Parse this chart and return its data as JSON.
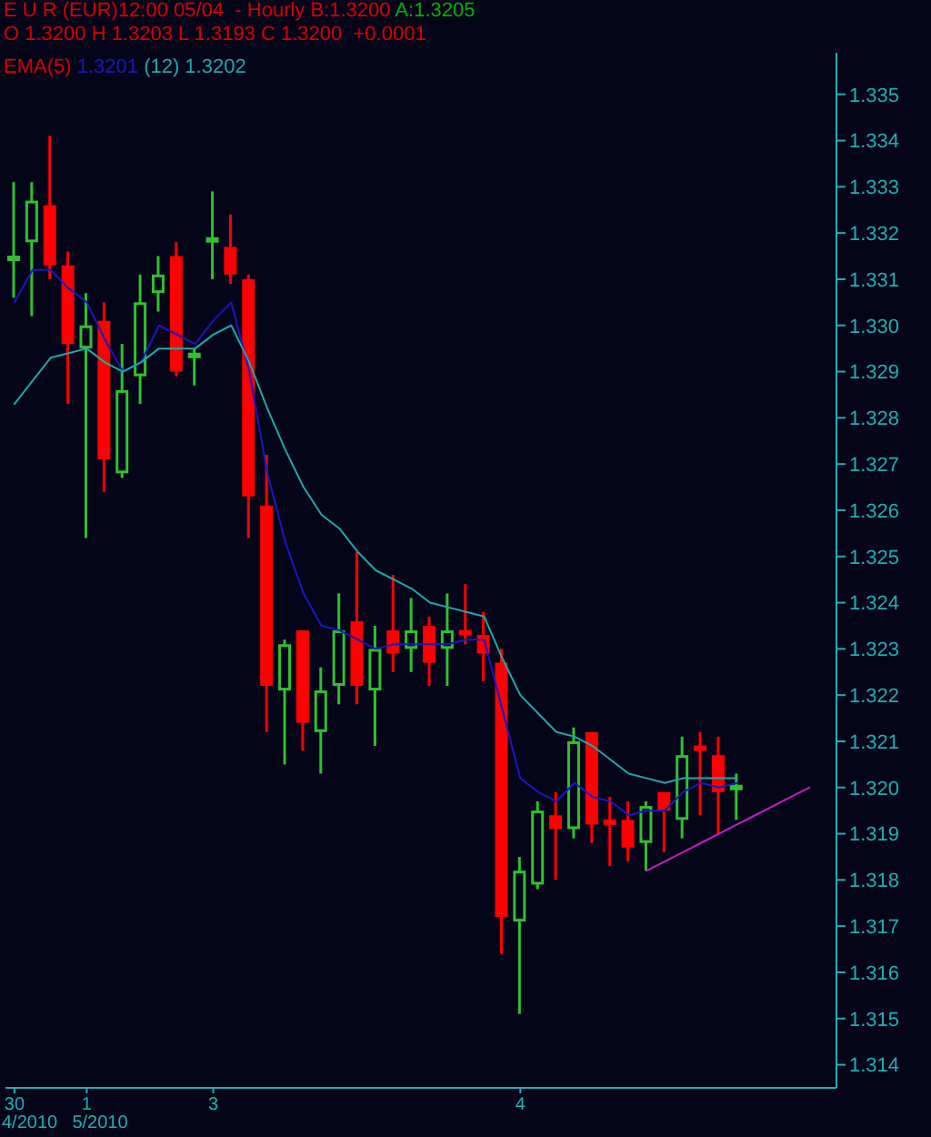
{
  "chart_data": {
    "type": "candlestick",
    "title": "E U R (EUR)12:00 05/04  - Hourly B:1.3200",
    "subtitle": "O 1.3200 H 1.3203 L 1.3193 C 1.3200  +0.0001",
    "annotations": [
      "A:1.3205",
      "4/2010",
      "5/2010"
    ],
    "categories": [
      "30",
      null,
      null,
      null,
      "1",
      null,
      null,
      null,
      null,
      null,
      null,
      "3",
      null,
      null,
      null,
      null,
      null,
      null,
      null,
      null,
      null,
      null,
      null,
      null,
      null,
      null,
      null,
      null,
      "4",
      null,
      null,
      null,
      null,
      null,
      null,
      null,
      null,
      null,
      null,
      null,
      null,
      null,
      null,
      null,
      null,
      null
    ],
    "ohlc": [
      [
        1.3314,
        1.3331,
        1.3306,
        1.3315
      ],
      [
        1.3318,
        1.3331,
        1.3302,
        1.3327
      ],
      [
        1.3326,
        1.3341,
        1.331,
        1.3313
      ],
      [
        1.3313,
        1.3316,
        1.3283,
        1.3296
      ],
      [
        1.3295,
        1.3307,
        1.3254,
        1.33
      ],
      [
        1.3301,
        1.3305,
        1.3264,
        1.3271
      ],
      [
        1.3268,
        1.3296,
        1.3267,
        1.3286
      ],
      [
        1.3289,
        1.3311,
        1.3283,
        1.3305
      ],
      [
        1.3307,
        1.3315,
        1.3303,
        1.3311
      ],
      [
        1.3315,
        1.3318,
        1.3289,
        1.329
      ],
      [
        1.3293,
        1.3295,
        1.3287,
        1.3294
      ],
      [
        1.3318,
        1.3329,
        1.331,
        1.3319
      ],
      [
        1.3317,
        1.3324,
        1.3309,
        1.3311
      ],
      [
        1.331,
        1.3311,
        1.3254,
        1.3263
      ],
      [
        1.3261,
        1.3272,
        1.3212,
        1.3222
      ],
      [
        1.3221,
        1.3232,
        1.3205,
        1.3231
      ],
      [
        1.3234,
        1.3234,
        1.3208,
        1.3214
      ],
      [
        1.3212,
        1.3226,
        1.3203,
        1.3221
      ],
      [
        1.3222,
        1.3242,
        1.3218,
        1.3234
      ],
      [
        1.3236,
        1.3251,
        1.3218,
        1.3222
      ],
      [
        1.3221,
        1.3235,
        1.3209,
        1.323
      ],
      [
        1.3234,
        1.3246,
        1.3225,
        1.3229
      ],
      [
        1.323,
        1.3241,
        1.3225,
        1.3234
      ],
      [
        1.3235,
        1.3237,
        1.3222,
        1.3227
      ],
      [
        1.323,
        1.3242,
        1.3222,
        1.3234
      ],
      [
        1.3234,
        1.3244,
        1.3231,
        1.3233
      ],
      [
        1.3233,
        1.3238,
        1.3223,
        1.3229
      ],
      [
        1.3227,
        1.323,
        1.3164,
        1.3172
      ],
      [
        1.3171,
        1.3185,
        1.3151,
        1.3182
      ],
      [
        1.3179,
        1.3197,
        1.3178,
        1.3195
      ],
      [
        1.3194,
        1.3199,
        1.318,
        1.3191
      ],
      [
        1.3191,
        1.3213,
        1.3189,
        1.321
      ],
      [
        1.3212,
        1.3212,
        1.3188,
        1.3192
      ],
      [
        1.3193,
        1.3198,
        1.3183,
        1.3192
      ],
      [
        1.3193,
        1.3197,
        1.3184,
        1.3187
      ],
      [
        1.3188,
        1.3197,
        1.3182,
        1.3196
      ],
      [
        1.3199,
        1.3199,
        1.3186,
        1.3195
      ],
      [
        1.3193,
        1.3211,
        1.3189,
        1.3207
      ],
      [
        1.3209,
        1.3212,
        1.3194,
        1.3208
      ],
      [
        1.3207,
        1.3211,
        1.319,
        1.3199
      ],
      [
        1.32,
        1.3203,
        1.3193,
        1.32
      ],
      null,
      null,
      null,
      null,
      null
    ],
    "colors": [
      "#30c030",
      "#30c030",
      "#ff0000",
      "#ff0000",
      "#30c030",
      "#ff0000",
      "#30c030",
      "#30c030",
      "#30c030",
      "#ff0000",
      "#30c030",
      "#30c030",
      "#ff0000",
      "#ff0000",
      "#ff0000",
      "#30c030",
      "#ff0000",
      "#30c030",
      "#30c030",
      "#ff0000",
      "#30c030",
      "#ff0000",
      "#30c030",
      "#ff0000",
      "#30c030",
      "#ff0000",
      "#ff0000",
      "#ff0000",
      "#30c030",
      "#30c030",
      "#ff0000",
      "#30c030",
      "#ff0000",
      "#ff0000",
      "#ff0000",
      "#30c030",
      "#ff0000",
      "#30c030",
      "#ff0000",
      "#ff0000",
      "#30c030",
      null,
      null,
      null,
      null,
      null
    ],
    "series": [
      {
        "name": "1.3201",
        "type": "line",
        "color": "#1818c0",
        "values": [
          1.3305,
          1.3312,
          1.3312,
          1.3308,
          1.3305,
          1.3297,
          1.329,
          1.3292,
          1.33,
          1.3298,
          1.3296,
          1.3301,
          1.3305,
          1.329,
          1.3268,
          1.3253,
          1.3242,
          1.3235,
          1.3234,
          1.3232,
          1.323,
          1.3231,
          1.3231,
          1.3231,
          1.3231,
          1.3232,
          1.3232,
          1.3217,
          1.3202,
          1.3199,
          1.3197,
          1.3201,
          1.3198,
          1.3197,
          1.3194,
          1.3195,
          1.3195,
          1.3199,
          1.3201,
          1.32,
          1.3201,
          null,
          null,
          null,
          null,
          null
        ]
      },
      {
        "name": "(12) 1.3202",
        "type": "line",
        "color": "#20a8a8",
        "values": [
          1.3283,
          1.3288,
          1.3293,
          1.3294,
          1.3295,
          1.3292,
          1.329,
          1.3292,
          1.3295,
          1.3295,
          1.3295,
          1.3298,
          1.33,
          1.3292,
          1.3282,
          1.3273,
          1.3265,
          1.3259,
          1.3256,
          1.3251,
          1.3247,
          1.3245,
          1.3243,
          1.324,
          1.3239,
          1.3238,
          1.3237,
          1.3228,
          1.322,
          1.3216,
          1.3212,
          1.3211,
          1.3209,
          1.3206,
          1.3203,
          1.3202,
          1.3201,
          1.3202,
          1.3202,
          1.3202,
          1.3202,
          null,
          null,
          null,
          null,
          null
        ]
      },
      {
        "type": "line",
        "color": "#c020c0",
        "values": [
          null,
          null,
          null,
          null,
          null,
          null,
          null,
          null,
          null,
          null,
          null,
          null,
          null,
          null,
          null,
          null,
          null,
          null,
          null,
          null,
          null,
          null,
          null,
          null,
          null,
          null,
          null,
          null,
          null,
          null,
          null,
          null,
          null,
          null,
          null,
          1.3182,
          1.3184,
          1.3186,
          1.3188,
          1.319,
          1.3192,
          1.3194,
          1.3196,
          1.3198,
          1.32,
          null
        ]
      }
    ],
    "legend_title": "EMA(5)",
    "legend": "top left",
    "ylim": [
      1.3135,
      1.3359
    ],
    "yticks": [
      1.314,
      1.315,
      1.316,
      1.317,
      1.318,
      1.319,
      {
        "value": 1.32,
        "label": "1.320"
      },
      1.321,
      1.322,
      1.323,
      1.324,
      1.325,
      1.326,
      1.327,
      1.328,
      1.329,
      {
        "value": 1.33,
        "label": "1.330"
      },
      1.331,
      1.332,
      1.333,
      1.334,
      1.335
    ]
  }
}
